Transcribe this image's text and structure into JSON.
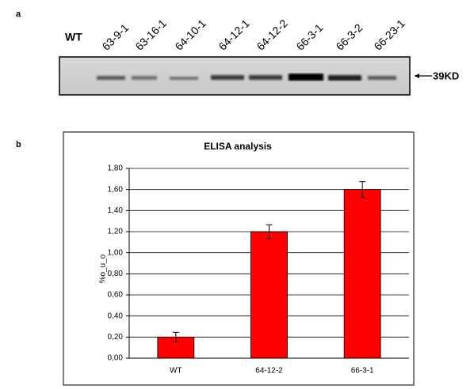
{
  "panel_a": {
    "label": "a",
    "lanes": [
      "WT",
      "63-9-1",
      "63-16-1",
      "64-10-1",
      "64-12-1",
      "64-12-2",
      "66-3-1",
      "66-3-2",
      "66-23-1"
    ],
    "marker": "39KD"
  },
  "panel_b": {
    "label": "b"
  },
  "chart_data": {
    "type": "bar",
    "title": "ELISA analysis",
    "y_label": "%o_u_o",
    "categories": [
      "WT",
      "64-12-2",
      "66-3-1"
    ],
    "series": [
      {
        "name": "ELISA",
        "color": "#ff0000",
        "values": [
          0.2,
          1.2,
          1.6
        ],
        "errors": [
          0.045,
          0.065,
          0.075
        ]
      }
    ],
    "ylim": [
      0,
      1.8
    ],
    "yticks": [
      {
        "value": 0,
        "label": "0,00"
      },
      {
        "value": 0.2,
        "label": "0,20"
      },
      {
        "value": 0.4,
        "label": "0,40"
      },
      {
        "value": 0.6,
        "label": "0,60"
      },
      {
        "value": 0.8,
        "label": "0,80"
      },
      {
        "value": 1.0,
        "label": "1,00"
      },
      {
        "value": 1.2,
        "label": "1,20"
      },
      {
        "value": 1.4,
        "label": "1,40"
      },
      {
        "value": 1.6,
        "label": "1,60"
      },
      {
        "value": 1.8,
        "label": "1,80"
      }
    ],
    "grid": true
  }
}
